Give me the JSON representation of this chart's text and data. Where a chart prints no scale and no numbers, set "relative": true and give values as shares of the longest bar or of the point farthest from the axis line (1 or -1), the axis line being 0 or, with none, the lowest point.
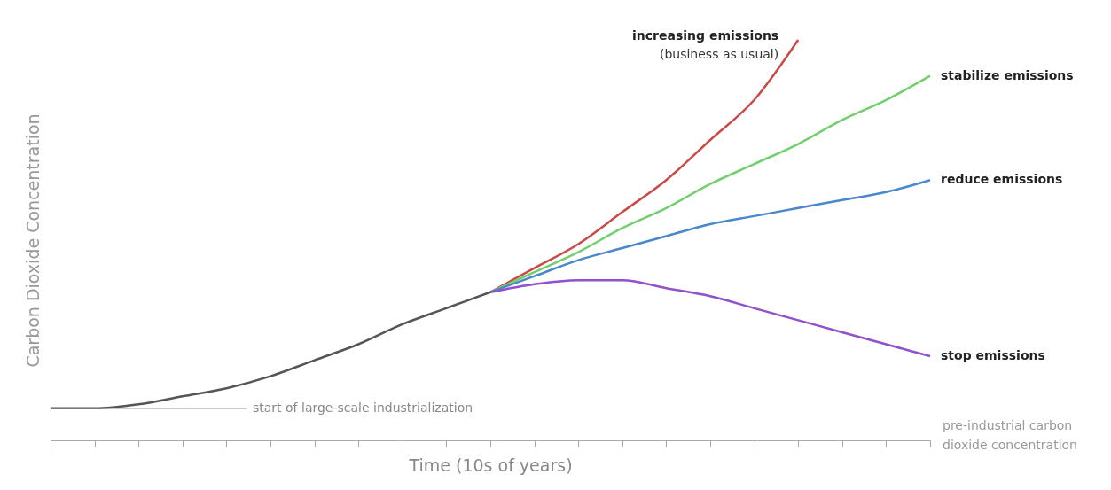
{
  "chart_data": {
    "type": "line",
    "relative": true,
    "xlabel": "Time (10s of years)",
    "ylabel": "Carbon Dioxide Concentration",
    "legend": false,
    "grid": false,
    "categories": [
      null,
      null,
      null,
      null,
      null,
      null,
      null,
      null,
      null,
      null,
      null,
      null,
      null,
      null,
      null,
      null,
      null,
      null,
      null,
      null,
      null
    ],
    "series": [
      {
        "color": "#555555",
        "values": [
          0.08,
          0.08,
          0.09,
          0.11,
          0.13,
          0.16,
          0.2,
          0.24,
          0.29,
          0.33,
          0.37,
          null,
          null,
          null,
          null,
          null,
          null,
          null,
          null,
          null,
          null
        ]
      },
      {
        "name": "increasing emissions",
        "color": "#c84b47",
        "values": [
          null,
          null,
          null,
          null,
          null,
          null,
          null,
          null,
          null,
          null,
          0.37,
          0.43,
          0.49,
          0.57,
          0.65,
          0.75,
          0.85,
          1,
          null,
          null,
          null
        ]
      },
      {
        "name": "stabilize emissions",
        "color": "#72cf6e",
        "values": [
          null,
          null,
          null,
          null,
          null,
          null,
          null,
          null,
          null,
          null,
          0.37,
          0.42,
          0.47,
          0.53,
          0.58,
          0.64,
          0.69,
          0.74,
          0.8,
          0.85,
          0.91
        ]
      },
      {
        "name": "reduce emissions",
        "color": "#4a87cc",
        "values": [
          null,
          null,
          null,
          null,
          null,
          null,
          null,
          null,
          null,
          null,
          0.37,
          0.41,
          0.45,
          0.48,
          0.51,
          0.54,
          0.56,
          0.58,
          0.6,
          0.62,
          0.65
        ]
      },
      {
        "name": "stop emissions",
        "color": "#9150cc",
        "values": [
          null,
          null,
          null,
          null,
          null,
          null,
          null,
          null,
          null,
          null,
          0.37,
          0.39,
          0.4,
          0.4,
          0.38,
          0.36,
          0.33,
          0.3,
          0.27,
          0.24,
          0.21
        ]
      }
    ],
    "annotations": [
      "start of large-scale industrialization",
      "(business as usual)",
      "pre-industrial carbon dioxide concentration"
    ]
  }
}
